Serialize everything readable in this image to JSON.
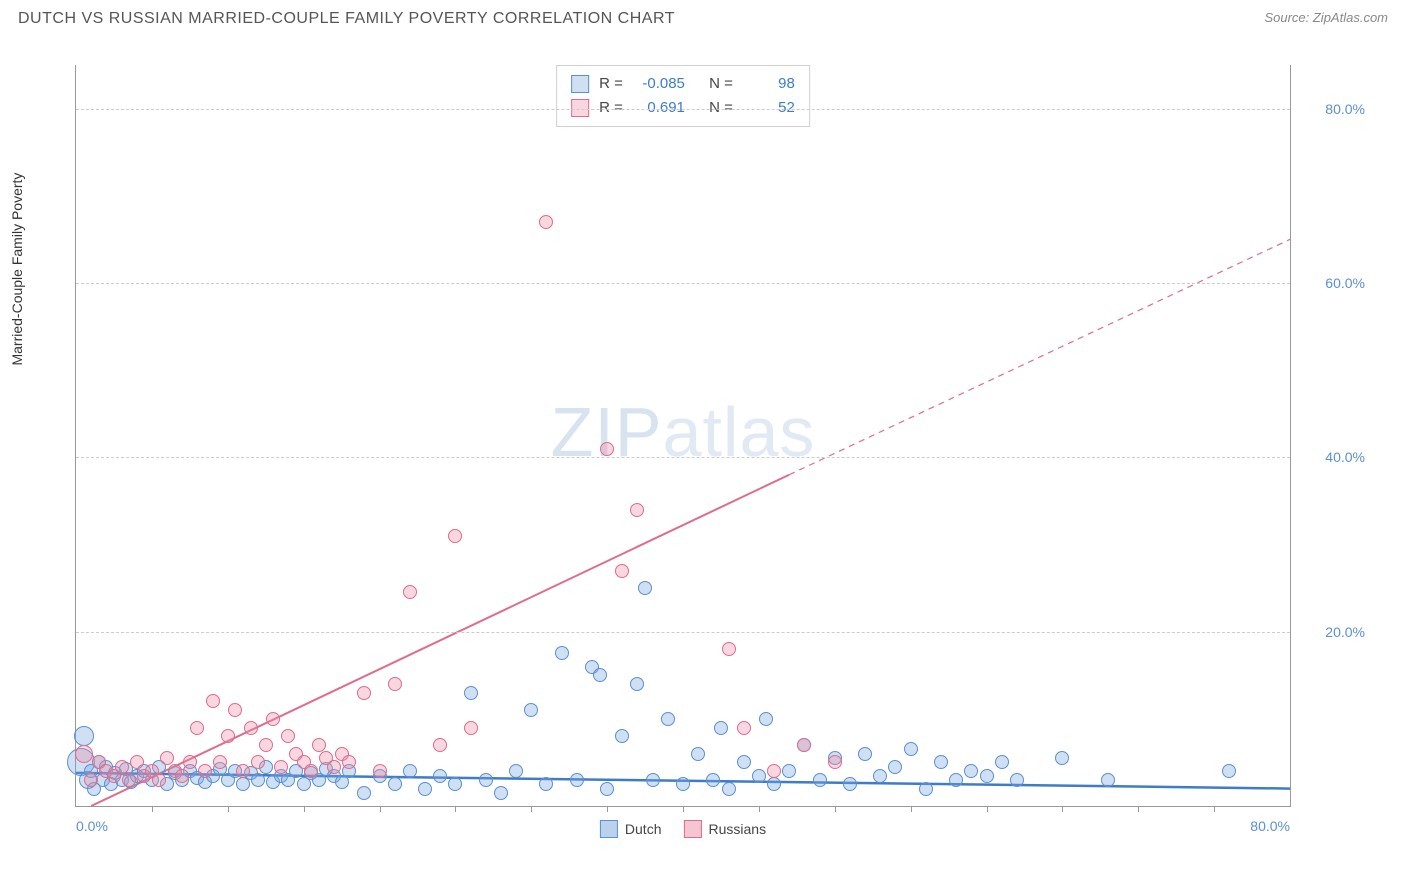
{
  "title": "DUTCH VS RUSSIAN MARRIED-COUPLE FAMILY POVERTY CORRELATION CHART",
  "source": "Source: ZipAtlas.com",
  "y_axis_label": "Married-Couple Family Poverty",
  "watermark_a": "ZIP",
  "watermark_b": "atlas",
  "chart": {
    "type": "scatter",
    "background_color": "#ffffff",
    "grid_color": "#cccccc",
    "axis_color": "#999999",
    "tick_label_color": "#5b8fd6",
    "xlim": [
      0,
      80
    ],
    "ylim": [
      0,
      85
    ],
    "x_ticks_minor": [
      5,
      10,
      15,
      20,
      25,
      30,
      35,
      40,
      45,
      50,
      55,
      60,
      65,
      70,
      75
    ],
    "x_tick_labels": [
      {
        "pos": 0,
        "text": "0.0%",
        "align": "left"
      },
      {
        "pos": 80,
        "text": "80.0%",
        "align": "right"
      }
    ],
    "y_gridlines": [
      20,
      40,
      60,
      80
    ],
    "y_tick_labels": [
      {
        "pos": 20,
        "text": "20.0%"
      },
      {
        "pos": 40,
        "text": "40.0%"
      },
      {
        "pos": 60,
        "text": "60.0%"
      },
      {
        "pos": 80,
        "text": "80.0%"
      }
    ],
    "point_stroke_width": 1,
    "point_base_radius": 7
  },
  "series": [
    {
      "name": "Dutch",
      "fill": "rgba(120,165,220,0.35)",
      "stroke": "#5b8fd6",
      "R": "-0.085",
      "N": "98",
      "trend": {
        "x1": 0,
        "y1": 3.8,
        "x2": 80,
        "y2": 2.0,
        "stroke": "#3d7cc9",
        "width": 2.5,
        "dash": "none"
      },
      "points": [
        {
          "x": 0.3,
          "y": 5,
          "r": 14
        },
        {
          "x": 0.5,
          "y": 8,
          "r": 10
        },
        {
          "x": 0.8,
          "y": 3,
          "r": 9
        },
        {
          "x": 1,
          "y": 4
        },
        {
          "x": 1.2,
          "y": 2
        },
        {
          "x": 1.5,
          "y": 5
        },
        {
          "x": 1.8,
          "y": 3
        },
        {
          "x": 2,
          "y": 4.5
        },
        {
          "x": 2.3,
          "y": 2.5
        },
        {
          "x": 2.6,
          "y": 3.8
        },
        {
          "x": 3,
          "y": 3
        },
        {
          "x": 3.3,
          "y": 4.2
        },
        {
          "x": 3.6,
          "y": 2.8
        },
        {
          "x": 4,
          "y": 3.5
        },
        {
          "x": 4.5,
          "y": 4
        },
        {
          "x": 5,
          "y": 3
        },
        {
          "x": 5.5,
          "y": 4.5
        },
        {
          "x": 6,
          "y": 2.5
        },
        {
          "x": 6.5,
          "y": 3.8
        },
        {
          "x": 7,
          "y": 3
        },
        {
          "x": 7.5,
          "y": 4
        },
        {
          "x": 8,
          "y": 3.2
        },
        {
          "x": 8.5,
          "y": 2.8
        },
        {
          "x": 9,
          "y": 3.5
        },
        {
          "x": 9.5,
          "y": 4.2
        },
        {
          "x": 10,
          "y": 3
        },
        {
          "x": 10.5,
          "y": 4
        },
        {
          "x": 11,
          "y": 2.5
        },
        {
          "x": 11.5,
          "y": 3.8
        },
        {
          "x": 12,
          "y": 3
        },
        {
          "x": 12.5,
          "y": 4.5
        },
        {
          "x": 13,
          "y": 2.8
        },
        {
          "x": 13.5,
          "y": 3.5
        },
        {
          "x": 14,
          "y": 3
        },
        {
          "x": 14.5,
          "y": 4
        },
        {
          "x": 15,
          "y": 2.5
        },
        {
          "x": 15.5,
          "y": 3.8
        },
        {
          "x": 16,
          "y": 3
        },
        {
          "x": 16.5,
          "y": 4.2
        },
        {
          "x": 17,
          "y": 3.5
        },
        {
          "x": 17.5,
          "y": 2.8
        },
        {
          "x": 18,
          "y": 4
        },
        {
          "x": 19,
          "y": 1.5
        },
        {
          "x": 20,
          "y": 3.5
        },
        {
          "x": 21,
          "y": 2.5
        },
        {
          "x": 22,
          "y": 4
        },
        {
          "x": 23,
          "y": 2
        },
        {
          "x": 24,
          "y": 3.5
        },
        {
          "x": 25,
          "y": 2.5
        },
        {
          "x": 26,
          "y": 13
        },
        {
          "x": 27,
          "y": 3
        },
        {
          "x": 28,
          "y": 1.5
        },
        {
          "x": 29,
          "y": 4
        },
        {
          "x": 30,
          "y": 11
        },
        {
          "x": 31,
          "y": 2.5
        },
        {
          "x": 32,
          "y": 17.5
        },
        {
          "x": 33,
          "y": 3
        },
        {
          "x": 34,
          "y": 16
        },
        {
          "x": 34.5,
          "y": 15
        },
        {
          "x": 35,
          "y": 2
        },
        {
          "x": 36,
          "y": 8
        },
        {
          "x": 37,
          "y": 14
        },
        {
          "x": 37.5,
          "y": 25
        },
        {
          "x": 38,
          "y": 3
        },
        {
          "x": 39,
          "y": 10
        },
        {
          "x": 40,
          "y": 2.5
        },
        {
          "x": 41,
          "y": 6
        },
        {
          "x": 42,
          "y": 3
        },
        {
          "x": 42.5,
          "y": 9
        },
        {
          "x": 43,
          "y": 2
        },
        {
          "x": 44,
          "y": 5
        },
        {
          "x": 45,
          "y": 3.5
        },
        {
          "x": 45.5,
          "y": 10
        },
        {
          "x": 46,
          "y": 2.5
        },
        {
          "x": 47,
          "y": 4
        },
        {
          "x": 48,
          "y": 7
        },
        {
          "x": 49,
          "y": 3
        },
        {
          "x": 50,
          "y": 5.5
        },
        {
          "x": 51,
          "y": 2.5
        },
        {
          "x": 52,
          "y": 6
        },
        {
          "x": 53,
          "y": 3.5
        },
        {
          "x": 54,
          "y": 4.5
        },
        {
          "x": 55,
          "y": 6.5
        },
        {
          "x": 56,
          "y": 2
        },
        {
          "x": 57,
          "y": 5
        },
        {
          "x": 58,
          "y": 3
        },
        {
          "x": 59,
          "y": 4
        },
        {
          "x": 60,
          "y": 3.5
        },
        {
          "x": 61,
          "y": 5
        },
        {
          "x": 62,
          "y": 3
        },
        {
          "x": 65,
          "y": 5.5
        },
        {
          "x": 68,
          "y": 3
        },
        {
          "x": 76,
          "y": 4
        }
      ]
    },
    {
      "name": "Russians",
      "fill": "rgba(235,140,165,0.35)",
      "stroke": "#e06c8c",
      "R": "0.691",
      "N": "52",
      "trend_solid": {
        "x1": 1,
        "y1": 0,
        "x2": 47,
        "y2": 38,
        "stroke": "#e06c8c",
        "width": 2,
        "dash": "none"
      },
      "trend_dash": {
        "x1": 47,
        "y1": 38,
        "x2": 80,
        "y2": 65,
        "stroke": "#e06c8c",
        "width": 1.2,
        "dash": "6,5"
      },
      "points": [
        {
          "x": 0.5,
          "y": 6,
          "r": 9
        },
        {
          "x": 1,
          "y": 3
        },
        {
          "x": 1.5,
          "y": 5
        },
        {
          "x": 2,
          "y": 4
        },
        {
          "x": 2.5,
          "y": 3.5
        },
        {
          "x": 3,
          "y": 4.5
        },
        {
          "x": 3.5,
          "y": 3
        },
        {
          "x": 4,
          "y": 5
        },
        {
          "x": 4.5,
          "y": 3.5
        },
        {
          "x": 5,
          "y": 4
        },
        {
          "x": 5.5,
          "y": 3
        },
        {
          "x": 6,
          "y": 5.5
        },
        {
          "x": 6.5,
          "y": 4
        },
        {
          "x": 7,
          "y": 3.5
        },
        {
          "x": 7.5,
          "y": 5
        },
        {
          "x": 8,
          "y": 9
        },
        {
          "x": 8.5,
          "y": 4
        },
        {
          "x": 9,
          "y": 12
        },
        {
          "x": 9.5,
          "y": 5
        },
        {
          "x": 10,
          "y": 8
        },
        {
          "x": 10.5,
          "y": 11
        },
        {
          "x": 11,
          "y": 4
        },
        {
          "x": 11.5,
          "y": 9
        },
        {
          "x": 12,
          "y": 5
        },
        {
          "x": 12.5,
          "y": 7
        },
        {
          "x": 13,
          "y": 10
        },
        {
          "x": 13.5,
          "y": 4.5
        },
        {
          "x": 14,
          "y": 8
        },
        {
          "x": 14.5,
          "y": 6
        },
        {
          "x": 15,
          "y": 5
        },
        {
          "x": 15.5,
          "y": 4
        },
        {
          "x": 16,
          "y": 7
        },
        {
          "x": 16.5,
          "y": 5.5
        },
        {
          "x": 17,
          "y": 4.5
        },
        {
          "x": 17.5,
          "y": 6
        },
        {
          "x": 18,
          "y": 5
        },
        {
          "x": 19,
          "y": 13
        },
        {
          "x": 20,
          "y": 4
        },
        {
          "x": 21,
          "y": 14
        },
        {
          "x": 22,
          "y": 24.5
        },
        {
          "x": 24,
          "y": 7
        },
        {
          "x": 25,
          "y": 31
        },
        {
          "x": 26,
          "y": 9
        },
        {
          "x": 31,
          "y": 67
        },
        {
          "x": 35,
          "y": 41
        },
        {
          "x": 36,
          "y": 27
        },
        {
          "x": 37,
          "y": 34
        },
        {
          "x": 43,
          "y": 18
        },
        {
          "x": 44,
          "y": 9
        },
        {
          "x": 46,
          "y": 4
        },
        {
          "x": 48,
          "y": 7
        },
        {
          "x": 50,
          "y": 5
        }
      ]
    }
  ],
  "legend_bottom": [
    {
      "label": "Dutch",
      "fill": "rgba(120,165,220,0.5)",
      "stroke": "#5b8fd6"
    },
    {
      "label": "Russians",
      "fill": "rgba(235,140,165,0.5)",
      "stroke": "#e06c8c"
    }
  ],
  "stats_labels": {
    "r": "R =",
    "n": "N ="
  }
}
